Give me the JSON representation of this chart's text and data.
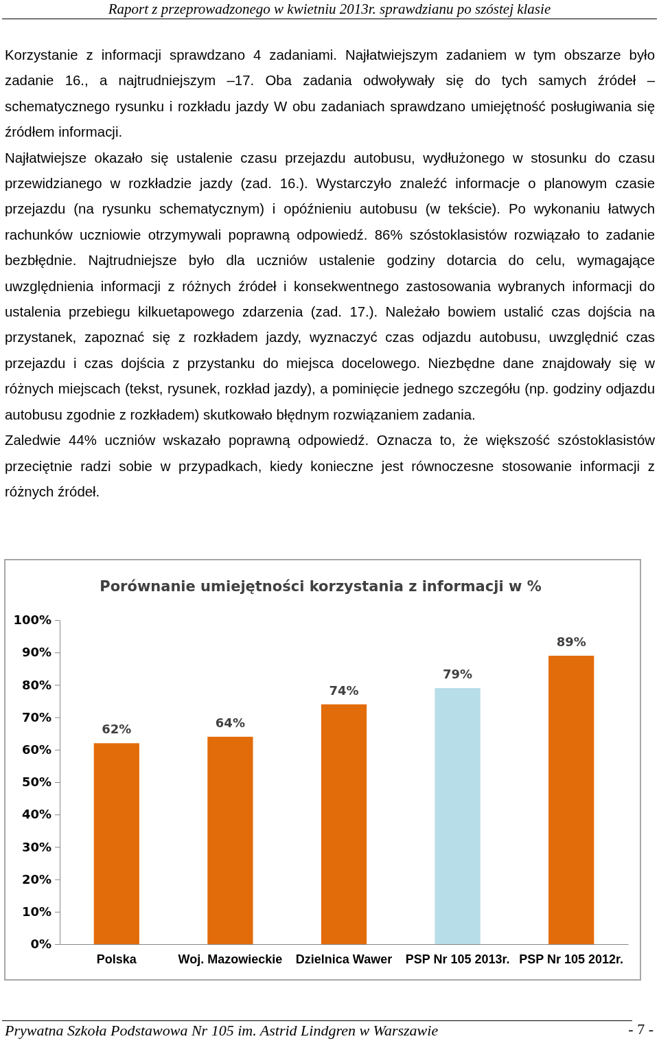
{
  "chart_data": {
    "type": "bar",
    "title": "Porównanie umiejętności korzystania z informacji w %",
    "categories": [
      "Polska",
      "Woj. Mazowieckie",
      "Dzielnica Wawer",
      "PSP Nr 105 2013r.",
      "PSP Nr 105 2012r."
    ],
    "values": [
      62,
      64,
      74,
      79,
      89
    ],
    "colors": [
      "#e36c0a",
      "#e36c0a",
      "#e36c0a",
      "#b7dde8",
      "#e36c0a"
    ],
    "ylim": [
      0,
      100
    ],
    "yticks": [
      {
        "value": 0,
        "label": "0%"
      },
      {
        "value": 10,
        "label": "10%"
      },
      {
        "value": 20,
        "label": "20%"
      },
      {
        "value": 30,
        "label": "30%"
      },
      {
        "value": 40,
        "label": "40%"
      },
      {
        "value": 50,
        "label": "50%"
      },
      {
        "value": 60,
        "label": "60%"
      },
      {
        "value": 70,
        "label": "70%"
      },
      {
        "value": 80,
        "label": "80%"
      },
      {
        "value": 90,
        "label": "90%"
      },
      {
        "value": 100,
        "label": "100%"
      }
    ],
    "value_labels": [
      "62%",
      "64%",
      "74%",
      "79%",
      "89%"
    ],
    "annotations": [
      "Raport z przeprowadzonego w kwietniu 2013r. sprawdzianu po szóstej klasie",
      "Korzystanie z informacji sprawdzano 4 zadaniami. Najłatwiejszym zadaniem w tym obszarze było zadanie 16., a najtrudniejszym –17. Oba zadania odwoływały się do tych samych źródeł –schematycznego rysunku i rozkładu jazdy W obu zadaniach sprawdzano umiejętność posługiwania się źródłem informacji.",
      "Najłatwiejsze okazało się ustalenie czasu przejazdu autobusu, wydłużonego w stosunku do czasu przewidzianego w rozkładzie jazdy (zad. 16.). Wystarczyło znaleźć informacje o planowym czasie przejazdu (na rysunku schematycznym) i opóźnieniu autobusu (w tekście). Po wykonaniu łatwych rachunków uczniowie otrzymywali poprawną odpowiedź. 86% szóstoklasistów rozwiązało to zadanie bezbłędnie. Najtrudniejsze było dla uczniów ustalenie godziny dotarcia do celu, wymagające uwzględnienia informacji z różnych źródeł i konsekwentnego zastosowania wybranych informacji do ustalenia przebiegu kilkuetapowego zdarzenia (zad. 17.). Należało bowiem ustalić czas dojścia na przystanek, zapoznać się z rozkładem jazdy, wyznaczyć czas odjazdu autobusu, uwzględnić czas przejazdu i czas dojścia z przystanku do miejsca docelowego. Niezbędne dane znajdowały się w różnych miejscach (tekst, rysunek, rozkład jazdy), a pominięcie jednego szczegółu (np. godziny odjazdu autobusu zgodnie z rozkładem) skutkowało błędnym rozwiązaniem zadania.",
      "Zaledwie 44% uczniów wskazało poprawną odpowiedź. Oznacza to, że większość szóstoklasistów przeciętnie radzi sobie w przypadkach, kiedy konieczne jest równoczesne stosowanie informacji z różnych źródeł.",
      "Prywatna Szkoła Podstawowa Nr 105 im. Astrid Lindgren w Warszawie",
      "- 7 -"
    ]
  }
}
